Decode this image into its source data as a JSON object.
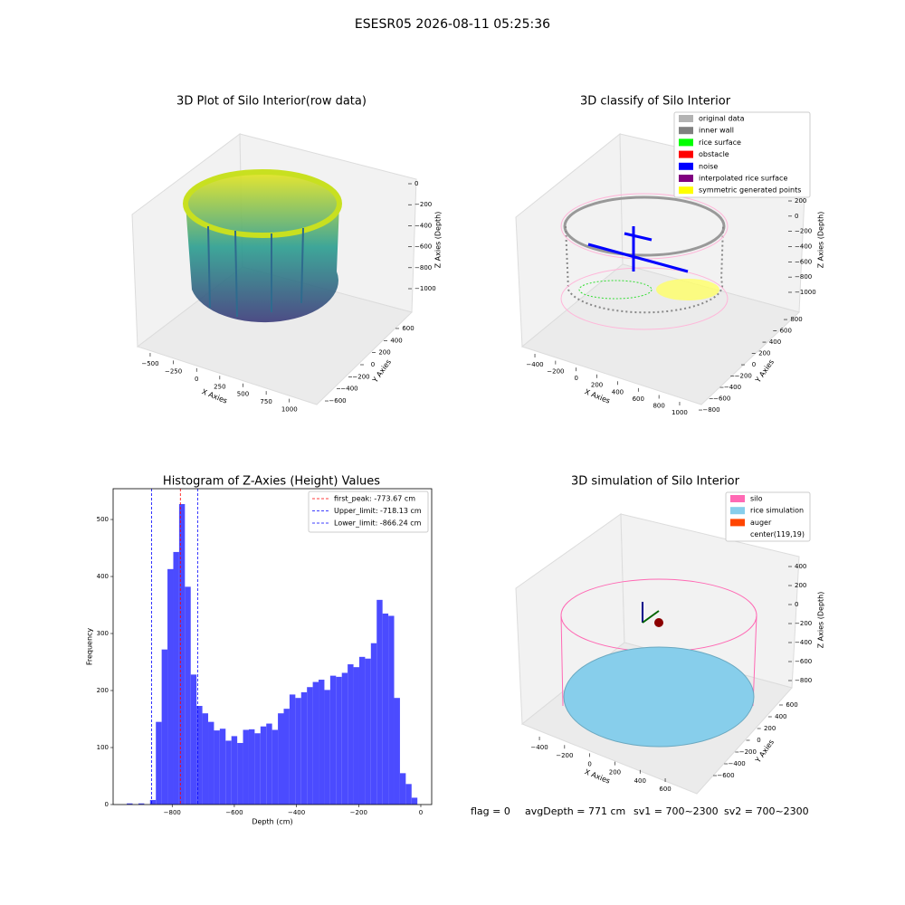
{
  "title": "ESESR05 2026-08-11 05:25:36",
  "chart_data": [
    {
      "type": "scatter3d",
      "title": "3D Plot of Silo Interior(row data)",
      "xlabel": "X Axies",
      "ylabel": "Y Axies",
      "zlabel": "Z Axies (Depth)",
      "xlim": [
        -600,
        1100
      ],
      "xticks": [
        {
          "value": -500,
          "label": "−500"
        },
        {
          "value": -250,
          "label": "−250"
        },
        0,
        250,
        500,
        750,
        1000
      ],
      "ylim": [
        -700,
        700
      ],
      "yticks": [
        {
          "value": -600,
          "label": "−600"
        },
        {
          "value": -400,
          "label": "−400"
        },
        {
          "value": -200,
          "label": "−200"
        },
        0,
        200,
        400,
        600
      ],
      "zlim": [
        -1100,
        50
      ],
      "zticks": [
        0,
        {
          "value": -200,
          "label": "−200"
        },
        {
          "value": -400,
          "label": "−400"
        },
        {
          "value": -600,
          "label": "−600"
        },
        {
          "value": -800,
          "label": "−800"
        },
        {
          "value": -1000,
          "label": "−1000"
        }
      ]
    },
    {
      "type": "scatter3d",
      "title": "3D classify of Silo Interior",
      "xlabel": "X Axies",
      "ylabel": "Y Axies",
      "zlabel": "Z Axies (Depth)",
      "xlim": [
        -500,
        1100
      ],
      "xticks": [
        {
          "value": -400,
          "label": "−400"
        },
        {
          "value": -200,
          "label": "−200"
        },
        0,
        200,
        400,
        600,
        800,
        1000
      ],
      "ylim": [
        -900,
        900
      ],
      "yticks": [
        {
          "value": -800,
          "label": "−800"
        },
        {
          "value": -600,
          "label": "−600"
        },
        {
          "value": -400,
          "label": "−400"
        },
        {
          "value": -200,
          "label": "−200"
        },
        0,
        200,
        400,
        600,
        800
      ],
      "zlim": [
        -1100,
        300
      ],
      "zticks": [
        200,
        0,
        {
          "value": -200,
          "label": "−200"
        },
        {
          "value": -400,
          "label": "−400"
        },
        {
          "value": -600,
          "label": "−600"
        },
        {
          "value": -800,
          "label": "−800"
        },
        {
          "value": -1000,
          "label": "−1000"
        }
      ],
      "series": [
        {
          "name": "original data",
          "color": "#b3b3b3"
        },
        {
          "name": "inner wall",
          "color": "#808080"
        },
        {
          "name": "rice surface",
          "color": "#00ff00"
        },
        {
          "name": "obstacle",
          "color": "#ff0000"
        },
        {
          "name": "noise",
          "color": "#0000ff"
        },
        {
          "name": "interpolated rice surface",
          "color": "#800080"
        },
        {
          "name": "symmetric generated points",
          "color": "#ffff00"
        }
      ]
    },
    {
      "type": "histogram",
      "title": "Histogram of Z-Axies (Height) Values",
      "xlabel": "Depth (cm)",
      "ylabel": "Frequency",
      "color": "#4b4bff",
      "xlim": [
        -990,
        35
      ],
      "xticks": [
        {
          "value": -800,
          "label": "−800"
        },
        {
          "value": -600,
          "label": "−600"
        },
        {
          "value": -400,
          "label": "−400"
        },
        {
          "value": -200,
          "label": "−200"
        },
        0
      ],
      "ylim": [
        0,
        554
      ],
      "yticks": [
        0,
        100,
        200,
        300,
        400,
        500
      ],
      "bins": [
        -946,
        -927.3,
        -908.6,
        -889.9,
        -871.2,
        -852.5,
        -833.8,
        -815.1,
        -796.4,
        -777.7,
        -759,
        -740.3,
        -721.6,
        -702.9,
        -684.2,
        -665.5,
        -646.8,
        -628.1,
        -609.4,
        -590.7,
        -572,
        -553.3,
        -534.6,
        -515.9,
        -497.2,
        -478.5,
        -459.8,
        -441.1,
        -422.4,
        -403.7,
        -385,
        -366.3,
        -347.6,
        -328.9,
        -310.2,
        -291.5,
        -272.8,
        -254.1,
        -235.4,
        -216.7,
        -198,
        -179.3,
        -160.6,
        -141.9,
        -123.2,
        -104.5,
        -85.8,
        -67.1,
        -48.4,
        -29.7,
        -11
      ],
      "values": [
        2,
        0,
        2,
        0,
        8,
        145,
        272,
        413,
        443,
        527,
        382,
        228,
        173,
        160,
        145,
        130,
        133,
        112,
        120,
        108,
        131,
        132,
        125,
        137,
        142,
        131,
        160,
        168,
        193,
        187,
        197,
        206,
        215,
        219,
        201,
        226,
        224,
        231,
        246,
        241,
        259,
        256,
        283,
        359,
        335,
        331,
        187,
        55,
        36,
        12
      ],
      "lines": [
        {
          "name": "first_peak: -773.67 cm",
          "value": -773.67,
          "color": "#ff0000"
        },
        {
          "name": "Upper_limit: -718.13 cm",
          "value": -718.13,
          "color": "#0000ff"
        },
        {
          "name": "Lower_limit: -866.24 cm",
          "value": -866.24,
          "color": "#0000ff"
        }
      ]
    },
    {
      "type": "scatter3d",
      "title": "3D simulation of Silo Interior",
      "xlabel": "X Axies",
      "ylabel": "Y Axies",
      "zlabel": "Z Axies (Depth)",
      "xlim": [
        -550,
        750
      ],
      "xticks": [
        {
          "value": -400,
          "label": "−400"
        },
        {
          "value": -200,
          "label": "−200"
        },
        0,
        200,
        400,
        600
      ],
      "ylim": [
        -700,
        700
      ],
      "yticks": [
        {
          "value": -600,
          "label": "−600"
        },
        {
          "value": -400,
          "label": "−400"
        },
        {
          "value": -200,
          "label": "−200"
        },
        0,
        200,
        400,
        600
      ],
      "zlim": [
        -900,
        500
      ],
      "zticks": [
        400,
        200,
        0,
        {
          "value": -200,
          "label": "−200"
        },
        {
          "value": -400,
          "label": "−400"
        },
        {
          "value": -600,
          "label": "−600"
        },
        {
          "value": -800,
          "label": "−800"
        }
      ],
      "series": [
        {
          "name": "silo",
          "color": "#ff69b4"
        },
        {
          "name": "rice simulation",
          "color": "#87ceeb"
        },
        {
          "name": "auger",
          "color": "#ff4500"
        },
        {
          "name": "center(119,19)",
          "color": "#ffffff"
        }
      ]
    }
  ],
  "footer": [
    "flag = 0",
    "avgDepth = 771 cm",
    "sv1 = 700~2300",
    "sv2 = 700~2300"
  ]
}
